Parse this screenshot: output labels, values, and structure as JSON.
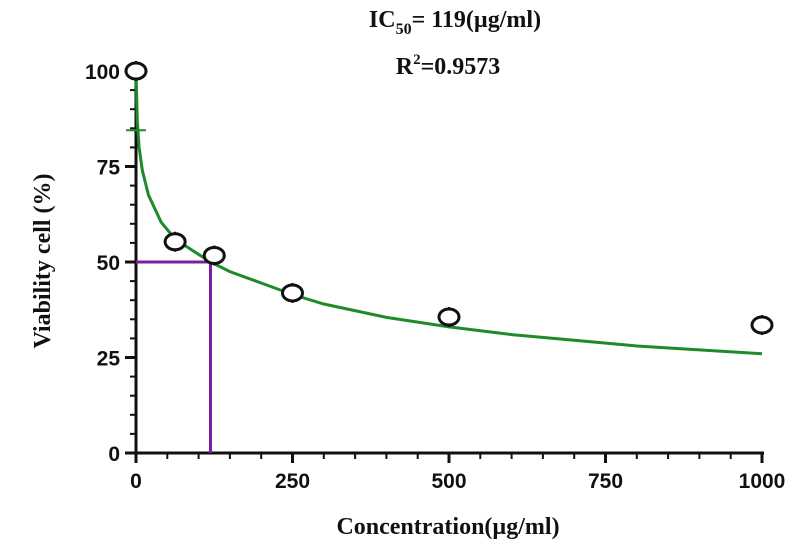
{
  "chart_data": {
    "type": "scatter",
    "annotation": {
      "ic50_prefix": "IC",
      "ic50_sub": "50",
      "ic50_rest": "= 119(µg/ml)",
      "r2_prefix": "R",
      "r2_sup": "2",
      "r2_rest": "=0.9573"
    },
    "xlabel": "Concentration(µg/ml)",
    "ylabel": "Viability cell (%)",
    "xlim": [
      0,
      1000
    ],
    "ylim": [
      0,
      100
    ],
    "xticks": [
      0,
      250,
      500,
      750,
      1000
    ],
    "yticks": [
      0,
      25,
      50,
      75,
      100
    ],
    "series": [
      {
        "x": [
          0,
          62.5,
          125,
          250,
          500,
          1000
        ],
        "y": [
          100,
          55.3,
          51.7,
          41.9,
          35.6,
          33.5
        ]
      }
    ],
    "fit_curve": {
      "color": "#1e8a2a",
      "x": [
        0,
        2,
        5,
        10,
        20,
        40,
        62.5,
        100,
        119,
        150,
        200,
        250,
        300,
        400,
        500,
        600,
        700,
        800,
        900,
        1000
      ],
      "y": [
        100,
        87,
        80,
        74,
        67.5,
        60.5,
        56,
        52,
        50,
        47.5,
        44.5,
        41.5,
        39,
        35.5,
        33,
        31,
        29.5,
        28,
        27,
        26
      ]
    },
    "ic50_guide": {
      "x": 119,
      "y": 50,
      "color": "#7a1fa2"
    },
    "marker_style": "open-circle",
    "grid": false
  }
}
